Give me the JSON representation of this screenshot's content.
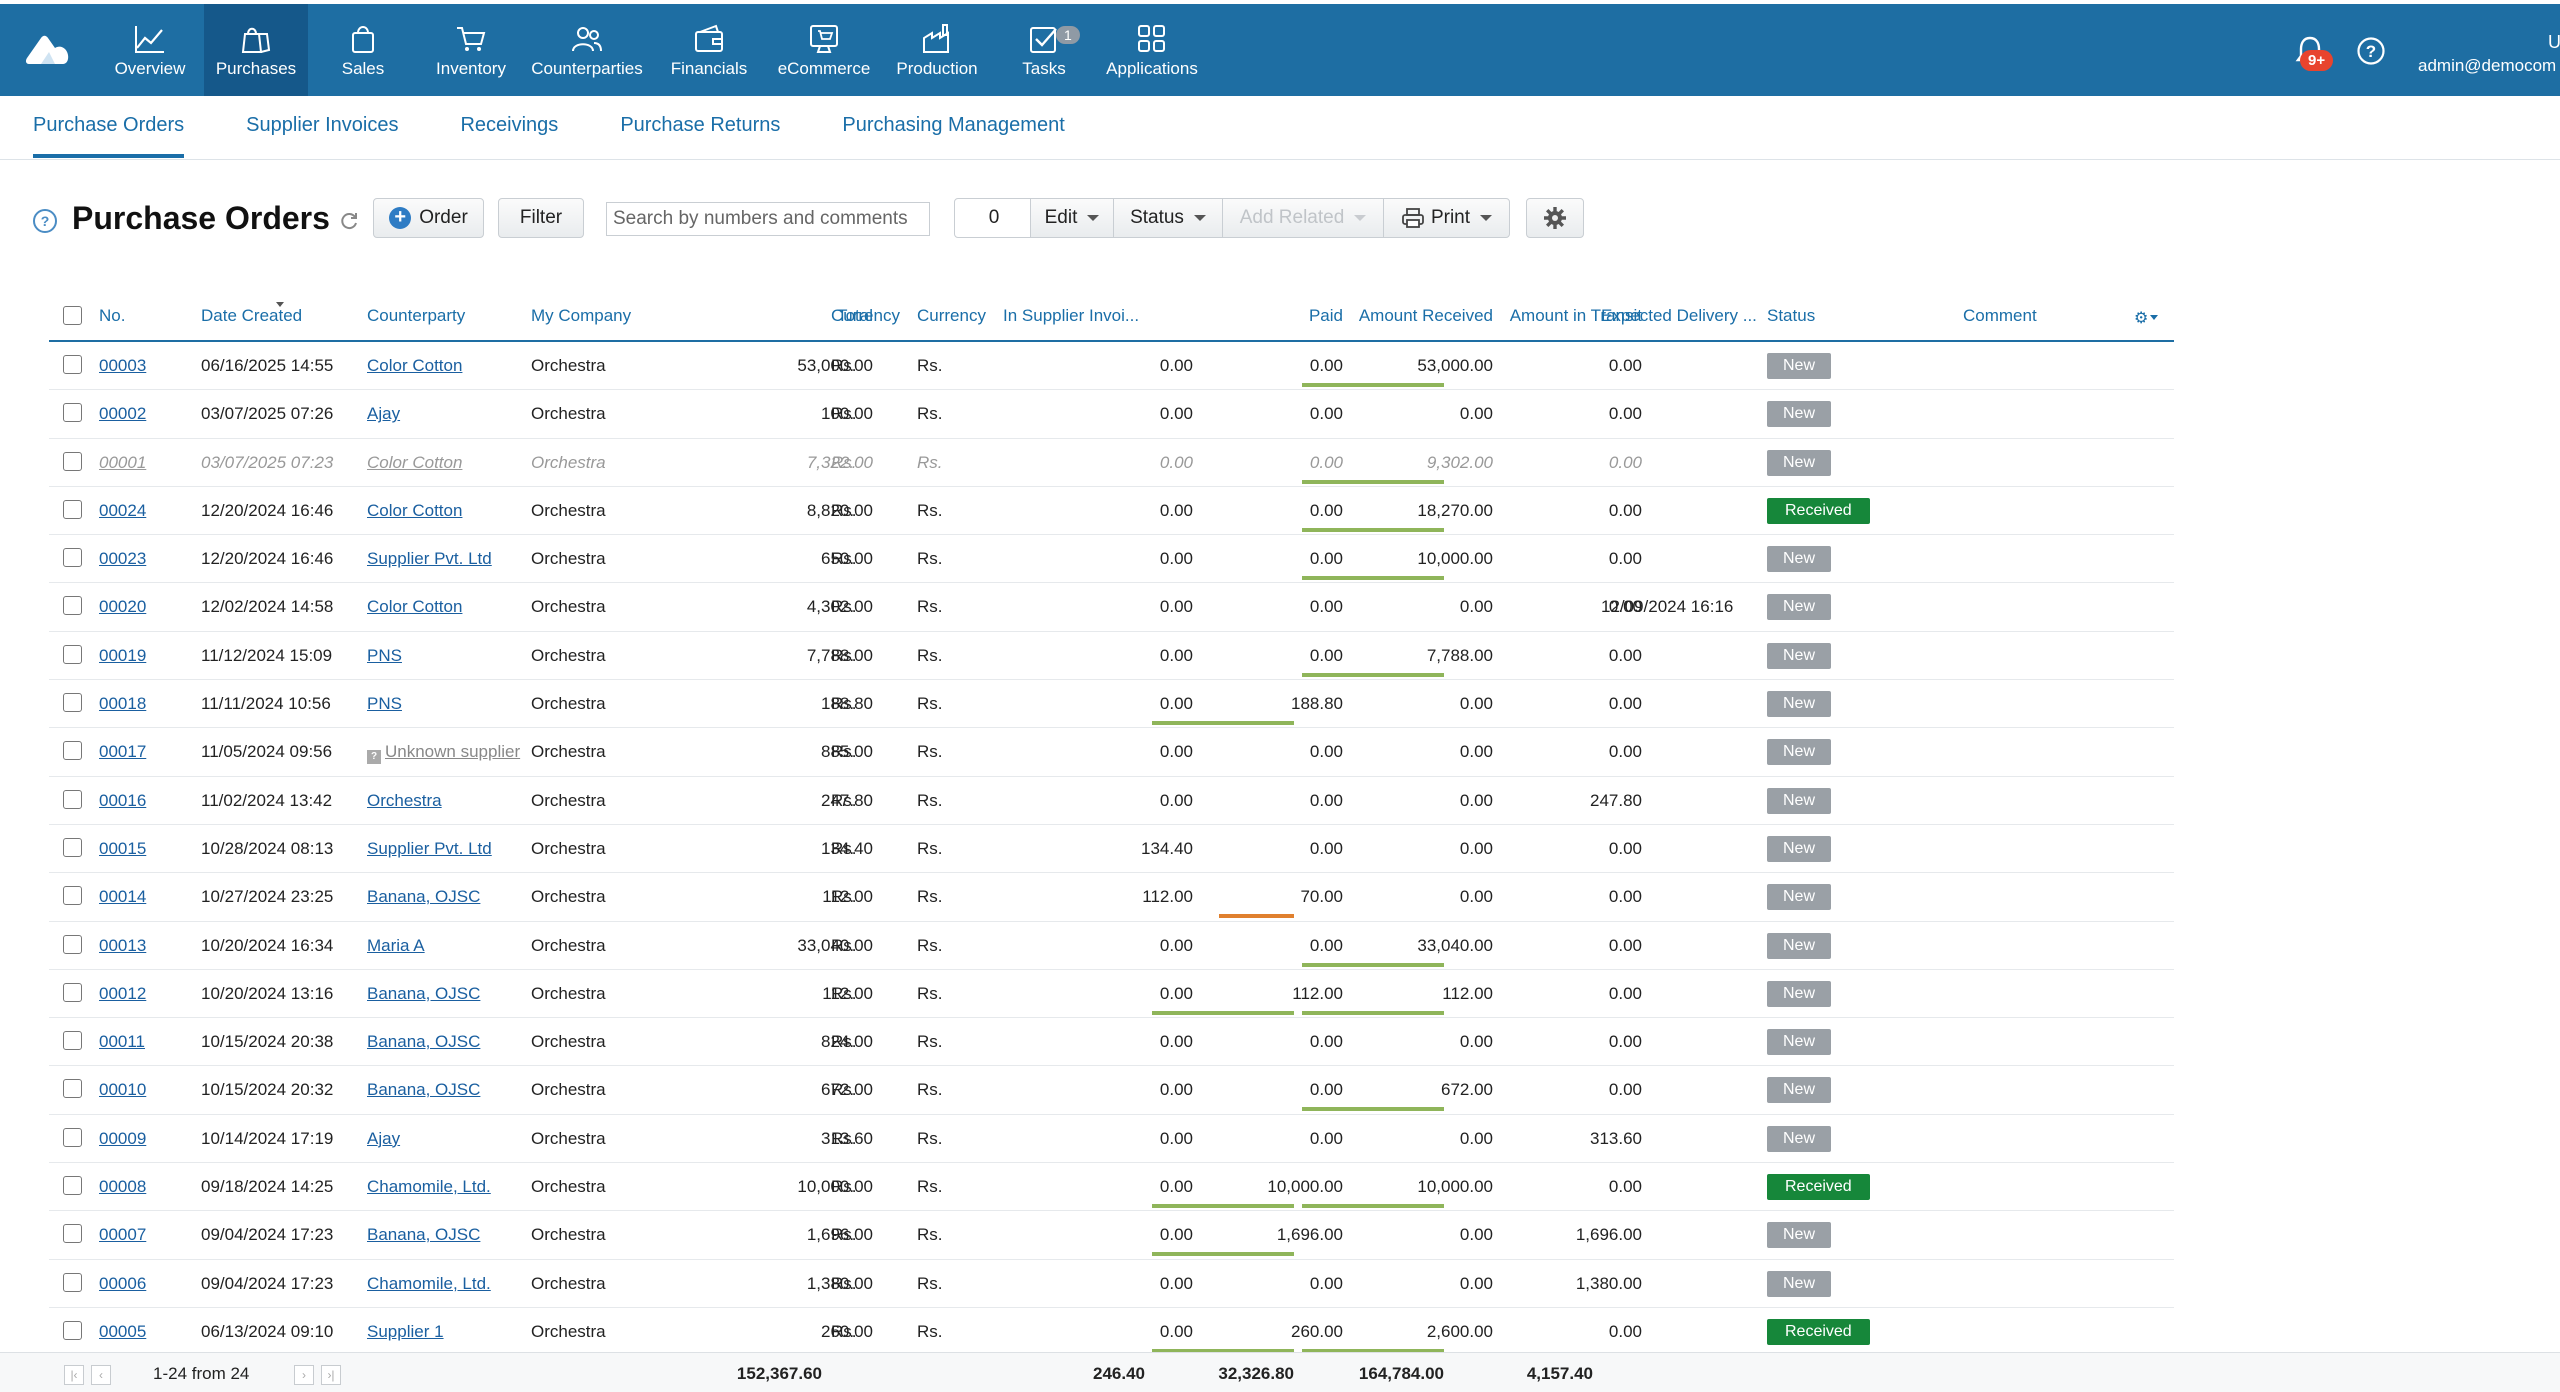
{
  "topnav": {
    "items": [
      {
        "label": "Overview",
        "icon": "chart-line-icon",
        "active": false
      },
      {
        "label": "Purchases",
        "icon": "shopping-bags-icon",
        "active": true
      },
      {
        "label": "Sales",
        "icon": "shopping-bag-icon",
        "active": false
      },
      {
        "label": "Inventory",
        "icon": "cart-icon",
        "active": false
      },
      {
        "label": "Counterparties",
        "icon": "people-icon",
        "active": false
      },
      {
        "label": "Financials",
        "icon": "wallet-icon",
        "active": false
      },
      {
        "label": "eCommerce",
        "icon": "ecommerce-icon",
        "active": false
      },
      {
        "label": "Production",
        "icon": "factory-icon",
        "active": false
      },
      {
        "label": "Tasks",
        "icon": "checkbox-icon",
        "active": false,
        "badge": "1"
      },
      {
        "label": "Applications",
        "icon": "grid-icon",
        "active": false
      }
    ],
    "notifications_badge": "9+",
    "user_initial": "U",
    "user_email": "admin@democom"
  },
  "subnav": {
    "items": [
      "Purchase Orders",
      "Supplier Invoices",
      "Receivings",
      "Purchase Returns",
      "Purchasing Management"
    ]
  },
  "toolbar": {
    "help": "?",
    "title": "Purchase Orders",
    "order_label": "Order",
    "filter_label": "Filter",
    "search_placeholder": "Search by numbers and comments",
    "count": "0",
    "edit_label": "Edit",
    "status_label": "Status",
    "add_related_label": "Add Related",
    "print_label": "Print"
  },
  "table": {
    "columns": {
      "no": "No.",
      "date": "Date Created",
      "counterparty": "Counterparty",
      "company": "My Company",
      "total": "Total",
      "currency1": "Currency",
      "currency2": "Currency",
      "invoiced": "In Supplier Invoi...",
      "paid": "Paid",
      "received": "Amount Received",
      "transit": "Amount in Transit",
      "delivery": "Expected Delivery ...",
      "status": "Status",
      "comment": "Comment"
    },
    "rows": [
      {
        "no": "00003",
        "date": "06/16/2025 14:55",
        "counterparty": "Color Cotton",
        "company": "Orchestra",
        "total": "53,000.00",
        "cur1": "Rs.",
        "cur2": "Rs.",
        "invoiced": "0.00",
        "paid": "0.00",
        "received": "53,000.00",
        "transit": "0.00",
        "delivery": "",
        "status": "New",
        "comment": "",
        "paid_bar": "",
        "received_bar": "green",
        "muted": false,
        "unknown": false
      },
      {
        "no": "00002",
        "date": "03/07/2025 07:26",
        "counterparty": "Ajay",
        "company": "Orchestra",
        "total": "100.00",
        "cur1": "Rs.",
        "cur2": "Rs.",
        "invoiced": "0.00",
        "paid": "0.00",
        "received": "0.00",
        "transit": "0.00",
        "delivery": "",
        "status": "New",
        "comment": "",
        "paid_bar": "",
        "received_bar": "",
        "muted": false,
        "unknown": false
      },
      {
        "no": "00001",
        "date": "03/07/2025 07:23",
        "counterparty": "Color Cotton",
        "company": "Orchestra",
        "total": "7,322.00",
        "cur1": "Rs.",
        "cur2": "Rs.",
        "invoiced": "0.00",
        "paid": "0.00",
        "received": "9,302.00",
        "transit": "0.00",
        "delivery": "",
        "status": "New",
        "comment": "",
        "paid_bar": "",
        "received_bar": "green",
        "muted": true,
        "unknown": false
      },
      {
        "no": "00024",
        "date": "12/20/2024 16:46",
        "counterparty": "Color Cotton",
        "company": "Orchestra",
        "total": "8,820.00",
        "cur1": "Rs.",
        "cur2": "Rs.",
        "invoiced": "0.00",
        "paid": "0.00",
        "received": "18,270.00",
        "transit": "0.00",
        "delivery": "",
        "status": "Received",
        "comment": "",
        "paid_bar": "",
        "received_bar": "green",
        "muted": false,
        "unknown": false
      },
      {
        "no": "00023",
        "date": "12/20/2024 16:46",
        "counterparty": "Supplier Pvt. Ltd",
        "company": "Orchestra",
        "total": "650.00",
        "cur1": "Rs.",
        "cur2": "Rs.",
        "invoiced": "0.00",
        "paid": "0.00",
        "received": "10,000.00",
        "transit": "0.00",
        "delivery": "",
        "status": "New",
        "comment": "",
        "paid_bar": "",
        "received_bar": "green",
        "muted": false,
        "unknown": false
      },
      {
        "no": "00020",
        "date": "12/02/2024 14:58",
        "counterparty": "Color Cotton",
        "company": "Orchestra",
        "total": "4,302.00",
        "cur1": "Rs.",
        "cur2": "Rs.",
        "invoiced": "0.00",
        "paid": "0.00",
        "received": "0.00",
        "transit": "0.00",
        "delivery": "12/09/2024 16:16",
        "status": "New",
        "comment": "",
        "paid_bar": "",
        "received_bar": "",
        "muted": false,
        "unknown": false
      },
      {
        "no": "00019",
        "date": "11/12/2024 15:09",
        "counterparty": "PNS",
        "company": "Orchestra",
        "total": "7,788.00",
        "cur1": "Rs.",
        "cur2": "Rs.",
        "invoiced": "0.00",
        "paid": "0.00",
        "received": "7,788.00",
        "transit": "0.00",
        "delivery": "",
        "status": "New",
        "comment": "",
        "paid_bar": "",
        "received_bar": "green",
        "muted": false,
        "unknown": false
      },
      {
        "no": "00018",
        "date": "11/11/2024 10:56",
        "counterparty": "PNS",
        "company": "Orchestra",
        "total": "188.80",
        "cur1": "Rs.",
        "cur2": "Rs.",
        "invoiced": "0.00",
        "paid": "188.80",
        "received": "0.00",
        "transit": "0.00",
        "delivery": "",
        "status": "New",
        "comment": "",
        "paid_bar": "green",
        "received_bar": "",
        "muted": false,
        "unknown": false
      },
      {
        "no": "00017",
        "date": "11/05/2024 09:56",
        "counterparty": "Unknown supplier",
        "company": "Orchestra",
        "total": "885.00",
        "cur1": "Rs.",
        "cur2": "Rs.",
        "invoiced": "0.00",
        "paid": "0.00",
        "received": "0.00",
        "transit": "0.00",
        "delivery": "",
        "status": "New",
        "comment": "",
        "paid_bar": "",
        "received_bar": "",
        "muted": false,
        "unknown": true
      },
      {
        "no": "00016",
        "date": "11/02/2024 13:42",
        "counterparty": "Orchestra",
        "company": "Orchestra",
        "total": "247.80",
        "cur1": "Rs.",
        "cur2": "Rs.",
        "invoiced": "0.00",
        "paid": "0.00",
        "received": "0.00",
        "transit": "247.80",
        "delivery": "",
        "status": "New",
        "comment": "",
        "paid_bar": "",
        "received_bar": "",
        "muted": false,
        "unknown": false
      },
      {
        "no": "00015",
        "date": "10/28/2024 08:13",
        "counterparty": "Supplier Pvt. Ltd",
        "company": "Orchestra",
        "total": "134.40",
        "cur1": "Rs.",
        "cur2": "Rs.",
        "invoiced": "134.40",
        "paid": "0.00",
        "received": "0.00",
        "transit": "0.00",
        "delivery": "",
        "status": "New",
        "comment": "",
        "paid_bar": "",
        "received_bar": "",
        "muted": false,
        "unknown": false
      },
      {
        "no": "00014",
        "date": "10/27/2024 23:25",
        "counterparty": "Banana, OJSC",
        "company": "Orchestra",
        "total": "112.00",
        "cur1": "Rs.",
        "cur2": "Rs.",
        "invoiced": "112.00",
        "paid": "70.00",
        "received": "0.00",
        "transit": "0.00",
        "delivery": "",
        "status": "New",
        "comment": "",
        "paid_bar": "orange",
        "received_bar": "",
        "muted": false,
        "unknown": false
      },
      {
        "no": "00013",
        "date": "10/20/2024 16:34",
        "counterparty": "Maria A",
        "company": "Orchestra",
        "total": "33,040.00",
        "cur1": "Rs.",
        "cur2": "Rs.",
        "invoiced": "0.00",
        "paid": "0.00",
        "received": "33,040.00",
        "transit": "0.00",
        "delivery": "",
        "status": "New",
        "comment": "",
        "paid_bar": "",
        "received_bar": "green",
        "muted": false,
        "unknown": false
      },
      {
        "no": "00012",
        "date": "10/20/2024 13:16",
        "counterparty": "Banana, OJSC",
        "company": "Orchestra",
        "total": "112.00",
        "cur1": "Rs.",
        "cur2": "Rs.",
        "invoiced": "0.00",
        "paid": "112.00",
        "received": "112.00",
        "transit": "0.00",
        "delivery": "",
        "status": "New",
        "comment": "",
        "paid_bar": "green",
        "received_bar": "green",
        "muted": false,
        "unknown": false
      },
      {
        "no": "00011",
        "date": "10/15/2024 20:38",
        "counterparty": "Banana, OJSC",
        "company": "Orchestra",
        "total": "824.00",
        "cur1": "Rs.",
        "cur2": "Rs.",
        "invoiced": "0.00",
        "paid": "0.00",
        "received": "0.00",
        "transit": "0.00",
        "delivery": "",
        "status": "New",
        "comment": "",
        "paid_bar": "",
        "received_bar": "",
        "muted": false,
        "unknown": false
      },
      {
        "no": "00010",
        "date": "10/15/2024 20:32",
        "counterparty": "Banana, OJSC",
        "company": "Orchestra",
        "total": "672.00",
        "cur1": "Rs.",
        "cur2": "Rs.",
        "invoiced": "0.00",
        "paid": "0.00",
        "received": "672.00",
        "transit": "0.00",
        "delivery": "",
        "status": "New",
        "comment": "",
        "paid_bar": "",
        "received_bar": "green",
        "muted": false,
        "unknown": false
      },
      {
        "no": "00009",
        "date": "10/14/2024 17:19",
        "counterparty": "Ajay",
        "company": "Orchestra",
        "total": "313.60",
        "cur1": "Rs.",
        "cur2": "Rs.",
        "invoiced": "0.00",
        "paid": "0.00",
        "received": "0.00",
        "transit": "313.60",
        "delivery": "",
        "status": "New",
        "comment": "",
        "paid_bar": "",
        "received_bar": "",
        "muted": false,
        "unknown": false
      },
      {
        "no": "00008",
        "date": "09/18/2024 14:25",
        "counterparty": "Chamomile, Ltd.",
        "company": "Orchestra",
        "total": "10,000.00",
        "cur1": "Rs.",
        "cur2": "Rs.",
        "invoiced": "0.00",
        "paid": "10,000.00",
        "received": "10,000.00",
        "transit": "0.00",
        "delivery": "",
        "status": "Received",
        "comment": "",
        "paid_bar": "green",
        "received_bar": "green",
        "muted": false,
        "unknown": false
      },
      {
        "no": "00007",
        "date": "09/04/2024 17:23",
        "counterparty": "Banana, OJSC",
        "company": "Orchestra",
        "total": "1,696.00",
        "cur1": "Rs.",
        "cur2": "Rs.",
        "invoiced": "0.00",
        "paid": "1,696.00",
        "received": "0.00",
        "transit": "1,696.00",
        "delivery": "",
        "status": "New",
        "comment": "",
        "paid_bar": "green",
        "received_bar": "",
        "muted": false,
        "unknown": false
      },
      {
        "no": "00006",
        "date": "09/04/2024 17:23",
        "counterparty": "Chamomile, Ltd.",
        "company": "Orchestra",
        "total": "1,380.00",
        "cur1": "Rs.",
        "cur2": "Rs.",
        "invoiced": "0.00",
        "paid": "0.00",
        "received": "0.00",
        "transit": "1,380.00",
        "delivery": "",
        "status": "New",
        "comment": "",
        "paid_bar": "",
        "received_bar": "",
        "muted": false,
        "unknown": false
      },
      {
        "no": "00005",
        "date": "06/13/2024 09:10",
        "counterparty": "Supplier 1",
        "company": "Orchestra",
        "total": "260.00",
        "cur1": "Rs.",
        "cur2": "Rs.",
        "invoiced": "0.00",
        "paid": "260.00",
        "received": "2,600.00",
        "transit": "0.00",
        "delivery": "",
        "status": "Received",
        "comment": "",
        "paid_bar": "green",
        "received_bar": "green",
        "muted": false,
        "unknown": false
      }
    ]
  },
  "footer": {
    "pagination": "1-24 from 24",
    "total": "152,367.60",
    "invoiced": "246.40",
    "paid": "32,326.80",
    "received": "164,784.00",
    "transit": "4,157.40"
  },
  "colors": {
    "topbar": "#1e6ea3",
    "topbar_active": "#15588a",
    "link": "#1a5fa0",
    "status_new": "#9aa0a6",
    "status_received": "#16873a",
    "bar_green": "#8fb55a",
    "bar_orange": "#e0802e"
  }
}
